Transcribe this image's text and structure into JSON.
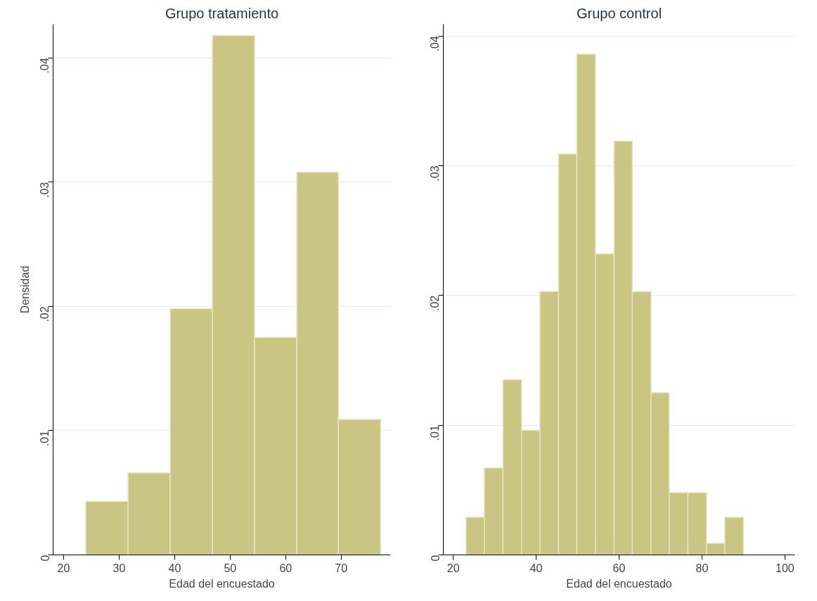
{
  "chart_data": [
    {
      "type": "histogram",
      "title": "Grupo tratamiento",
      "xlabel": "Edad del encuestado",
      "ylabel": "Densidad",
      "color": "#cbc584",
      "bins": [
        24.0,
        31.6,
        39.2,
        46.8,
        54.4,
        62.0,
        69.5,
        77.1
      ],
      "values": [
        0.0043,
        0.0066,
        0.0198,
        0.0418,
        0.0175,
        0.0308,
        0.0109
      ],
      "xlim": [
        18.1,
        78.9
      ],
      "xticks": [
        20,
        30,
        40,
        50,
        60,
        70
      ],
      "ylim": [
        0,
        0.0427
      ],
      "yticks": [
        0,
        {
          "value": 0.01,
          "label": ".01"
        },
        {
          "value": 0.02,
          "label": ".02"
        },
        {
          "value": 0.03,
          "label": ".03"
        },
        {
          "value": 0.04,
          "label": ".04"
        }
      ],
      "grid": "y"
    },
    {
      "type": "histogram",
      "title": "Grupo control",
      "xlabel": "Edad del encuestado",
      "color": "#cbc584",
      "bins": [
        23.1,
        27.5,
        32.0,
        36.5,
        40.9,
        45.4,
        49.8,
        54.3,
        58.8,
        63.2,
        67.7,
        72.1,
        76.6,
        81.1,
        85.5,
        90.0
      ],
      "values": [
        0.0029,
        0.0067,
        0.0135,
        0.0096,
        0.0203,
        0.0309,
        0.0386,
        0.0232,
        0.0319,
        0.0203,
        0.0125,
        0.0048,
        0.0048,
        0.0009,
        0.0029
      ],
      "xlim": [
        17.6,
        102.4
      ],
      "xticks": [
        20,
        40,
        60,
        80,
        100
      ],
      "ylim": [
        0,
        0.0409
      ],
      "yticks": [
        0,
        {
          "value": 0.01,
          "label": ".01"
        },
        {
          "value": 0.02,
          "label": ".02"
        },
        {
          "value": 0.03,
          "label": ".03"
        },
        {
          "value": 0.04,
          "label": ".04"
        }
      ],
      "grid": "y"
    }
  ]
}
